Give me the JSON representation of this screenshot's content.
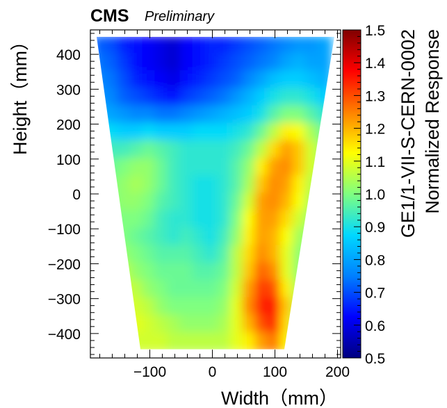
{
  "chart_data": {
    "type": "heatmap",
    "experiment": "CMS",
    "status": "Preliminary",
    "xlabel": "Width（mm）",
    "ylabel": "Height（mm）",
    "colorbar_label": "Normalized Response",
    "chamber_label": "GE1/1-VII-S-CERN-0002",
    "xlim": [
      -195,
      205
    ],
    "ylim": [
      -470,
      470
    ],
    "zlim": [
      0.5,
      1.5
    ],
    "x_ticks": [
      -100,
      0,
      100,
      200
    ],
    "x_tick_labels": [
      "−100",
      "0",
      "100",
      "200"
    ],
    "y_ticks": [
      400,
      300,
      200,
      100,
      0,
      -100,
      -200,
      -300,
      -400
    ],
    "y_tick_labels": [
      "400",
      "300",
      "200",
      "100",
      "0",
      "−100",
      "−200",
      "−300",
      "−400"
    ],
    "z_ticks": [
      1.5,
      1.4,
      1.3,
      1.2,
      1.1,
      1.0,
      0.9,
      0.8,
      0.7,
      0.6,
      0.5
    ],
    "z_tick_labels": [
      "1.5",
      "1.4",
      "1.3",
      "1.2",
      "1.1",
      "1.0",
      "0.9",
      "0.8",
      "0.7",
      "0.6",
      "0.5"
    ],
    "colormap": [
      "#000080",
      "#0000ff",
      "#0080ff",
      "#00d8ff",
      "#7fff80",
      "#ffff00",
      "#ff8000",
      "#ff0000",
      "#800000"
    ],
    "trapezoid": {
      "top_y": 450,
      "bottom_y": -445,
      "top_x": [
        -185,
        195
      ],
      "bottom_x": [
        -115,
        115
      ]
    },
    "x_columns": [
      -180,
      -160,
      -140,
      -120,
      -100,
      -80,
      -60,
      -40,
      -20,
      0,
      20,
      40,
      60,
      80,
      100,
      120,
      140,
      160,
      180
    ],
    "y_rows": [
      425,
      375,
      325,
      275,
      225,
      175,
      125,
      75,
      25,
      -25,
      -75,
      -125,
      -175,
      -225,
      -275,
      -325,
      -375,
      -425
    ],
    "z": [
      [
        0.72,
        0.7,
        0.66,
        0.64,
        0.62,
        0.6,
        0.58,
        0.62,
        0.64,
        0.66,
        0.66,
        0.68,
        0.7,
        0.72,
        0.74,
        0.76,
        0.78,
        0.78,
        0.8
      ],
      [
        0.74,
        0.72,
        0.68,
        0.64,
        0.62,
        0.6,
        0.58,
        0.62,
        0.64,
        0.66,
        0.68,
        0.7,
        0.72,
        0.74,
        0.76,
        0.8,
        0.82,
        0.8,
        0.8
      ],
      [
        0.76,
        0.74,
        0.7,
        0.66,
        0.64,
        0.62,
        0.6,
        0.64,
        0.66,
        0.68,
        0.7,
        0.72,
        0.76,
        0.8,
        0.84,
        0.86,
        0.86,
        0.84,
        0.82
      ],
      [
        0.78,
        0.76,
        0.72,
        0.7,
        0.68,
        0.66,
        0.64,
        0.68,
        0.7,
        0.72,
        0.74,
        0.78,
        0.82,
        0.86,
        0.9,
        0.92,
        0.92,
        0.9,
        0.86
      ],
      [
        0.82,
        0.8,
        0.78,
        0.76,
        0.76,
        0.74,
        0.74,
        0.76,
        0.78,
        0.8,
        0.82,
        0.84,
        0.86,
        0.9,
        0.96,
        1.0,
        1.0,
        0.96,
        0.92
      ],
      [
        0.9,
        0.88,
        0.86,
        0.86,
        0.88,
        0.86,
        0.86,
        0.86,
        0.88,
        0.88,
        0.88,
        0.9,
        0.92,
        0.98,
        1.06,
        1.14,
        1.12,
        1.04,
        0.98
      ],
      [
        0.96,
        0.94,
        0.94,
        0.96,
        0.98,
        0.96,
        0.94,
        0.92,
        0.92,
        0.92,
        0.92,
        0.94,
        0.98,
        1.06,
        1.16,
        1.22,
        1.18,
        1.08,
        1.02
      ],
      [
        0.98,
        0.98,
        1.0,
        1.02,
        1.02,
        0.98,
        0.94,
        0.92,
        0.92,
        0.92,
        0.92,
        0.96,
        1.02,
        1.14,
        1.22,
        1.24,
        1.18,
        1.08,
        1.04
      ],
      [
        1.0,
        1.0,
        1.02,
        1.04,
        1.02,
        0.98,
        0.94,
        0.92,
        0.9,
        0.9,
        0.92,
        0.96,
        1.04,
        1.18,
        1.24,
        1.22,
        1.14,
        1.06,
        1.02
      ],
      [
        1.0,
        1.0,
        1.02,
        1.02,
        1.0,
        0.96,
        0.94,
        0.92,
        0.9,
        0.9,
        0.92,
        0.98,
        1.08,
        1.22,
        1.24,
        1.2,
        1.12,
        1.04,
        1.0
      ],
      [
        1.0,
        1.0,
        1.0,
        1.0,
        0.98,
        0.94,
        0.92,
        0.92,
        0.9,
        0.9,
        0.92,
        1.0,
        1.12,
        1.22,
        1.22,
        1.16,
        1.08,
        1.02,
        1.0
      ],
      [
        1.02,
        1.02,
        1.0,
        0.98,
        0.96,
        0.94,
        0.92,
        0.94,
        0.92,
        0.9,
        0.94,
        1.02,
        1.14,
        1.22,
        1.2,
        1.12,
        1.04,
        1.0,
        0.98
      ],
      [
        1.04,
        1.04,
        1.02,
        1.0,
        0.98,
        0.96,
        0.96,
        0.96,
        0.94,
        0.92,
        0.96,
        1.06,
        1.16,
        1.24,
        1.2,
        1.1,
        1.02,
        0.98,
        0.96
      ],
      [
        1.06,
        1.06,
        1.06,
        1.02,
        1.0,
        0.98,
        0.98,
        0.98,
        0.96,
        0.96,
        0.98,
        1.06,
        1.18,
        1.28,
        1.24,
        1.1,
        1.02,
        0.98,
        0.96
      ],
      [
        1.08,
        1.08,
        1.08,
        1.06,
        1.02,
        1.0,
        0.98,
        0.98,
        0.98,
        0.98,
        1.0,
        1.08,
        1.22,
        1.32,
        1.3,
        1.14,
        1.04,
        0.98,
        0.96
      ],
      [
        1.1,
        1.1,
        1.1,
        1.08,
        1.06,
        1.02,
        1.0,
        1.0,
        1.0,
        1.0,
        1.02,
        1.1,
        1.24,
        1.34,
        1.36,
        1.18,
        1.06,
        1.0,
        0.98
      ],
      [
        1.1,
        1.1,
        1.1,
        1.1,
        1.08,
        1.06,
        1.04,
        1.02,
        1.02,
        1.02,
        1.04,
        1.1,
        1.2,
        1.3,
        1.34,
        1.16,
        1.04,
        1.0,
        0.98
      ],
      [
        1.08,
        1.08,
        1.08,
        1.08,
        1.08,
        1.08,
        1.06,
        1.06,
        1.06,
        1.06,
        1.06,
        1.1,
        1.14,
        1.22,
        1.26,
        1.14,
        1.04,
        1.0,
        0.98
      ]
    ]
  }
}
